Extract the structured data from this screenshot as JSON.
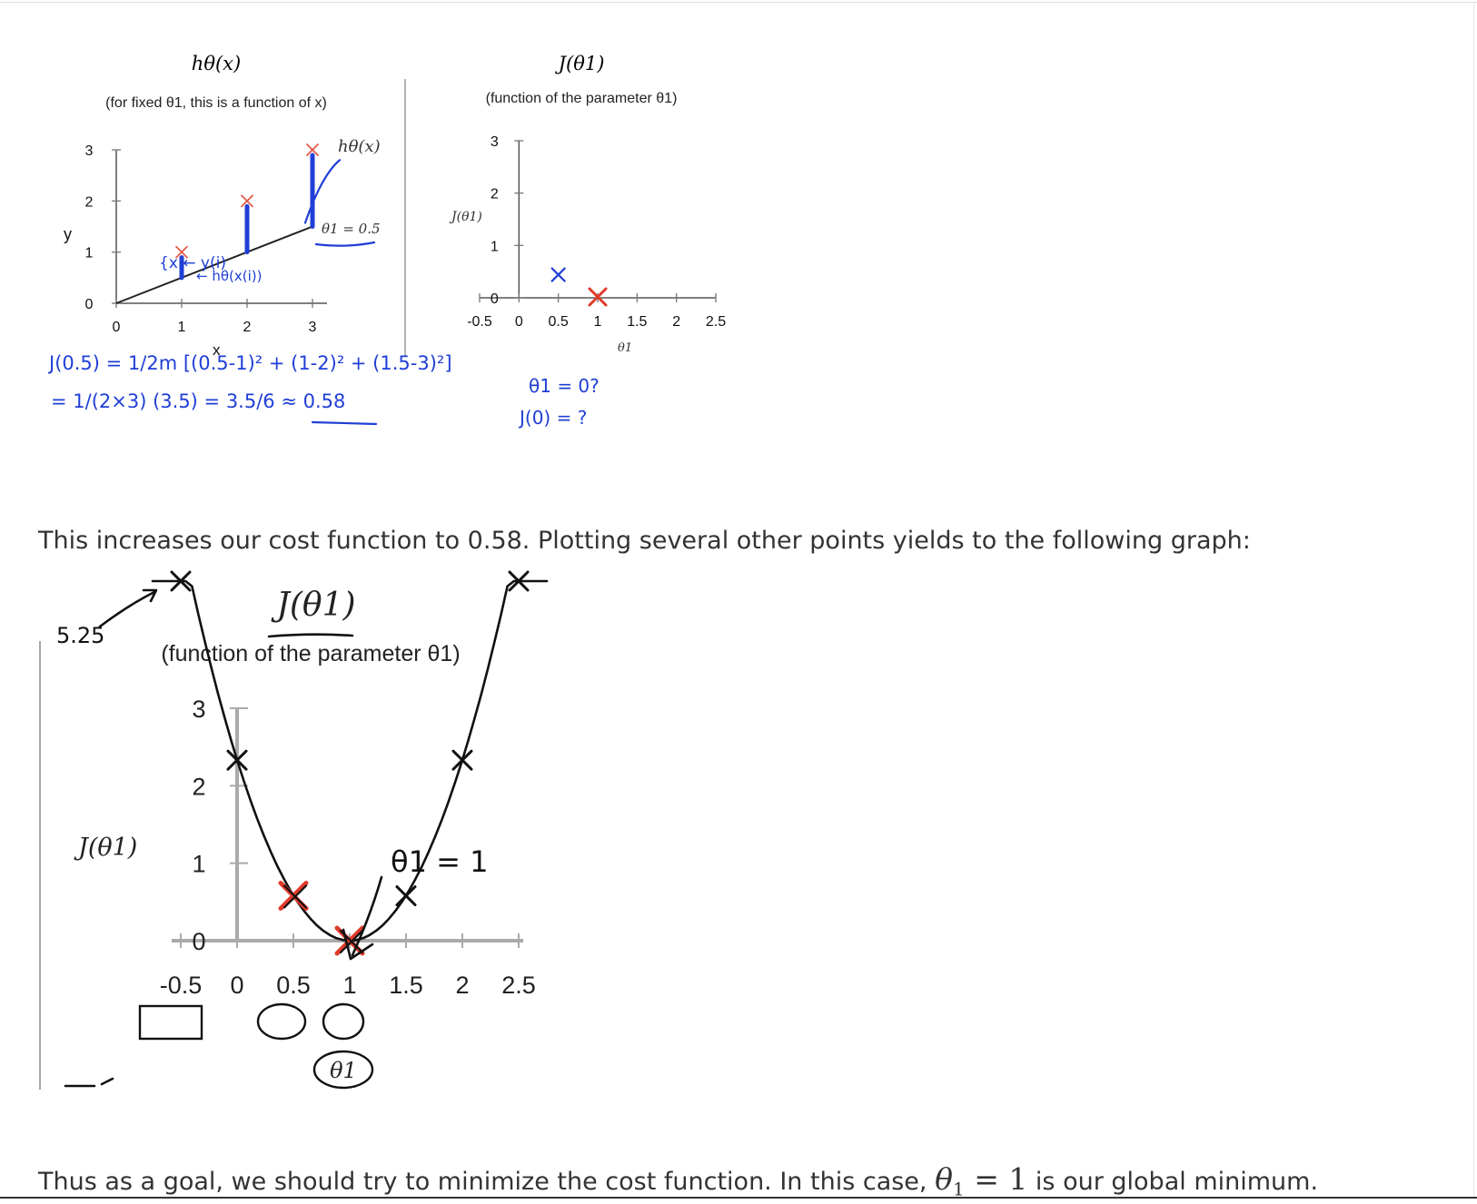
{
  "figure1": {
    "left_panel": {
      "title": "hθ(x)",
      "subtitle": "(for fixed θ1, this is a function of x)",
      "xlabel": "x",
      "ylabel": "y",
      "x_ticks": [
        "0",
        "1",
        "2",
        "3"
      ],
      "y_ticks": [
        "0",
        "1",
        "2",
        "3"
      ],
      "curve_label": "hθ(x)",
      "theta_label": "θ1 = 0.5",
      "annotation_y": "{x ← y(i)",
      "annotation_h": "← hθ(x(i))"
    },
    "right_panel": {
      "title": "J(θ1)",
      "subtitle": "(function of the parameter θ1)",
      "ylabel": "J(θ1)",
      "xlabel": "θ1",
      "x_ticks": [
        "-0.5",
        "0",
        "0.5",
        "1",
        "1.5",
        "2",
        "2.5"
      ],
      "y_ticks": [
        "0",
        "1",
        "2",
        "3"
      ],
      "question_theta": "θ1 = 0?",
      "question_j": "J(0) = ?"
    },
    "handwritten": {
      "line1": "J(0.5) = 1/2m [(0.5-1)² + (1-2)² + (1.5-3)²]",
      "line2": "= 1/(2×3) (3.5) = 3.5/6 ≈ 0.58"
    },
    "chart_data": [
      {
        "type": "line",
        "title": "hθ(x)",
        "subtitle": "(for fixed θ1, this is a function of x)",
        "xlabel": "x",
        "ylabel": "y",
        "xlim": [
          0,
          3
        ],
        "ylim": [
          0,
          3
        ],
        "series": [
          {
            "name": "hθ(x)",
            "x": [
              0,
              3
            ],
            "y": [
              0,
              1.5
            ]
          }
        ],
        "points": [
          {
            "x": 1,
            "y": 1
          },
          {
            "x": 2,
            "y": 2
          },
          {
            "x": 3,
            "y": 3
          }
        ]
      },
      {
        "type": "scatter",
        "title": "J(θ1)",
        "subtitle": "(function of the parameter θ1)",
        "xlabel": "θ1",
        "ylabel": "J(θ1)",
        "xlim": [
          -0.5,
          2.5
        ],
        "ylim": [
          0,
          3
        ],
        "points": [
          {
            "x": 0.5,
            "y": 0.58
          },
          {
            "x": 1,
            "y": 0
          }
        ]
      }
    ]
  },
  "paragraph1": "This increases our cost function to 0.58. Plotting several other points yields to the following graph:",
  "figure2": {
    "title": "J(θ1)",
    "subtitle": "(function of the parameter θ1)",
    "ylabel": "J(θ1)",
    "xlabel": "θ1",
    "x_ticks": [
      "-0.5",
      "0",
      "0.5",
      "1",
      "1.5",
      "2",
      "2.5"
    ],
    "y_ticks": [
      "0",
      "1",
      "2",
      "3"
    ],
    "annotation_value": "5.25",
    "annotation_min": "θ1 = 1",
    "chart_data": {
      "type": "line",
      "title": "J(θ1)",
      "subtitle": "(function of the parameter θ1)",
      "xlabel": "θ1",
      "ylabel": "J(θ1)",
      "xlim": [
        -0.5,
        2.5
      ],
      "ylim": [
        0,
        3
      ],
      "series": [
        {
          "name": "J(θ1)",
          "x": [
            -0.5,
            0,
            0.5,
            1,
            1.5,
            2,
            2.5
          ],
          "y": [
            5.25,
            2.33,
            0.58,
            0,
            0.58,
            2.33,
            5.25
          ]
        }
      ],
      "highlighted": [
        {
          "x": 0.5,
          "y": 0.58
        },
        {
          "x": 1,
          "y": 0
        }
      ]
    }
  },
  "paragraph2": {
    "before": "Thus as a goal, we should try to minimize the cost function. In this case, ",
    "theta": "θ",
    "sub": "1",
    "eq": " = ",
    "one": "1",
    "after": " is our global minimum."
  }
}
